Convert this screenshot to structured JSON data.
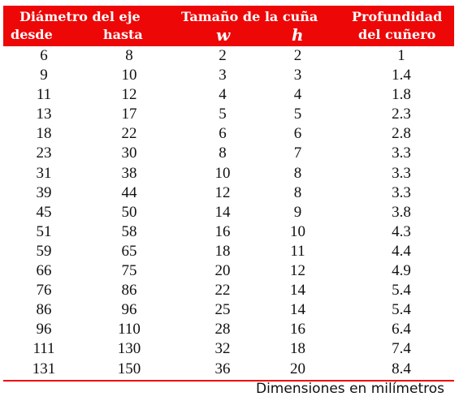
{
  "header": {
    "group1_title": "Diámetro del eje",
    "col_from": "desde",
    "col_to": "hasta",
    "group2_title": "Tamaño de la cuña",
    "col_w": "w",
    "col_h": "h",
    "col_depth_line1": "Profundidad",
    "col_depth_line2": "del cuñero"
  },
  "rows": [
    [
      "6",
      "8",
      "2",
      "2",
      "1"
    ],
    [
      "9",
      "10",
      "3",
      "3",
      "1.4"
    ],
    [
      "11",
      "12",
      "4",
      "4",
      "1.8"
    ],
    [
      "13",
      "17",
      "5",
      "5",
      "2.3"
    ],
    [
      "18",
      "22",
      "6",
      "6",
      "2.8"
    ],
    [
      "23",
      "30",
      "8",
      "7",
      "3.3"
    ],
    [
      "31",
      "38",
      "10",
      "8",
      "3.3"
    ],
    [
      "39",
      "44",
      "12",
      "8",
      "3.3"
    ],
    [
      "45",
      "50",
      "14",
      "9",
      "3.8"
    ],
    [
      "51",
      "58",
      "16",
      "10",
      "4.3"
    ],
    [
      "59",
      "65",
      "18",
      "11",
      "4.4"
    ],
    [
      "66",
      "75",
      "20",
      "12",
      "4.9"
    ],
    [
      "76",
      "86",
      "22",
      "14",
      "5.4"
    ],
    [
      "86",
      "96",
      "25",
      "14",
      "5.4"
    ],
    [
      "96",
      "110",
      "28",
      "16",
      "6.4"
    ],
    [
      "111",
      "130",
      "32",
      "18",
      "7.4"
    ],
    [
      "131",
      "150",
      "36",
      "20",
      "8.4"
    ]
  ],
  "footnote": "Dimensiones en milímetros",
  "colors": {
    "header_bg": "#ed0707",
    "header_text": "#ffffff"
  }
}
